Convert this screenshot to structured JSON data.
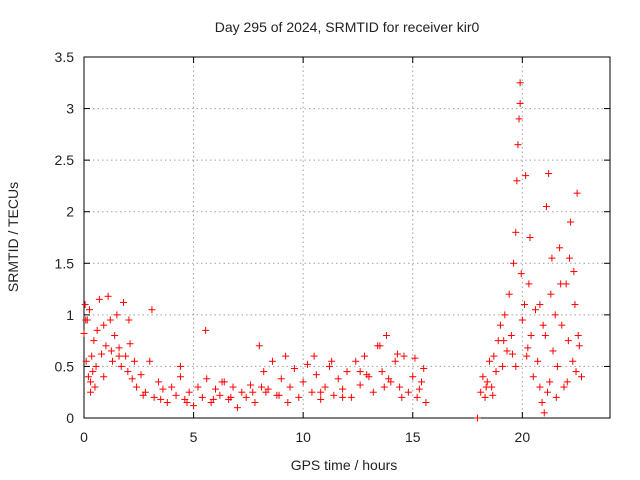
{
  "chart_data": {
    "type": "scatter",
    "title": "Day 295 of 2024, SRMTID for receiver kir0",
    "xlabel": "GPS time / hours",
    "ylabel": "SRMTID / TECUs",
    "xlim": [
      0,
      24
    ],
    "ylim": [
      0,
      3.5
    ],
    "xticks": [
      0,
      5,
      10,
      15,
      20
    ],
    "xtick_labels": [
      "0",
      "5",
      "10",
      "15",
      "20"
    ],
    "yticks": [
      0,
      0.5,
      1,
      1.5,
      2,
      2.5,
      3,
      3.5
    ],
    "ytick_labels": [
      "0",
      "0.5",
      "1",
      "1.5",
      "2",
      "2.5",
      "3",
      "3.5"
    ],
    "grid": true,
    "marker": "+",
    "marker_color": "#ff0000",
    "series": [
      {
        "name": "SRMTID",
        "x": [
          0.0,
          0.05,
          0.1,
          0.15,
          0.2,
          0.25,
          0.3,
          0.35,
          0.4,
          0.45,
          0.5,
          0.6,
          0.7,
          0.8,
          0.9,
          1.0,
          1.1,
          1.2,
          1.3,
          1.4,
          1.5,
          1.6,
          1.7,
          1.8,
          1.9,
          2.0,
          2.1,
          2.2,
          2.3,
          2.4,
          2.6,
          2.8,
          3.0,
          3.2,
          3.4,
          3.6,
          3.8,
          4.0,
          4.2,
          4.4,
          4.6,
          4.8,
          5.0,
          5.2,
          5.4,
          5.6,
          5.8,
          6.0,
          6.2,
          6.4,
          6.6,
          6.8,
          7.0,
          7.2,
          7.4,
          7.6,
          7.8,
          8.0,
          8.2,
          8.4,
          8.6,
          8.8,
          9.0,
          9.2,
          9.4,
          9.6,
          9.8,
          10.0,
          10.2,
          10.4,
          10.6,
          10.8,
          11.0,
          11.2,
          11.4,
          11.6,
          11.8,
          12.0,
          12.2,
          12.4,
          12.6,
          12.8,
          13.0,
          13.2,
          13.4,
          13.6,
          13.8,
          14.0,
          14.2,
          14.4,
          14.6,
          14.8,
          15.0,
          15.2,
          15.4,
          15.6,
          17.95,
          18.1,
          18.2,
          18.3,
          18.4,
          18.5,
          18.6,
          18.7,
          18.8,
          18.9,
          19.0,
          19.1,
          19.2,
          19.3,
          19.4,
          19.5,
          19.6,
          19.7,
          19.75,
          19.8,
          19.85,
          19.9,
          19.95,
          20.0,
          20.1,
          20.2,
          20.3,
          20.4,
          20.5,
          20.6,
          20.7,
          20.8,
          20.9,
          21.0,
          21.05,
          21.1,
          21.15,
          21.2,
          21.3,
          21.4,
          21.5,
          21.6,
          21.7,
          21.8,
          21.9,
          22.0,
          22.1,
          22.2,
          22.3,
          22.4,
          22.5,
          22.6,
          22.7,
          0.08,
          0.55,
          1.25,
          2.05,
          3.1,
          4.4,
          5.55,
          6.3,
          7.7,
          8.1,
          9.3,
          10.5,
          11.3,
          12.6,
          13.5,
          13.9,
          14.3,
          15.1,
          15.5,
          19.7,
          19.9,
          20.15,
          20.35,
          20.8,
          21.25,
          21.35,
          21.75,
          22.15,
          22.35,
          22.55,
          0.3,
          0.9,
          1.6,
          2.7,
          3.5,
          4.7,
          5.9,
          6.7,
          8.3,
          8.9,
          10.8,
          11.8,
          12.9,
          13.7,
          14.5,
          15.3,
          18.35,
          18.65,
          19.15,
          19.55,
          20.25,
          20.95,
          21.55,
          22.05,
          22.45
        ],
        "y": [
          0.82,
          1.1,
          0.55,
          0.95,
          0.4,
          1.05,
          0.35,
          0.6,
          0.45,
          0.75,
          0.3,
          0.85,
          1.15,
          0.62,
          0.9,
          0.7,
          1.18,
          0.95,
          0.55,
          0.8,
          1.0,
          0.68,
          0.5,
          1.12,
          0.6,
          0.45,
          0.72,
          0.38,
          0.55,
          0.3,
          0.42,
          0.25,
          0.55,
          0.2,
          0.35,
          0.28,
          0.15,
          0.3,
          0.22,
          0.4,
          0.18,
          0.25,
          0.12,
          0.3,
          0.2,
          0.38,
          0.15,
          0.28,
          0.22,
          0.35,
          0.18,
          0.3,
          0.1,
          0.25,
          0.2,
          0.32,
          0.15,
          0.7,
          0.45,
          0.28,
          0.55,
          0.22,
          0.38,
          0.6,
          0.3,
          0.48,
          0.2,
          0.35,
          0.52,
          0.25,
          0.42,
          0.18,
          0.3,
          0.5,
          0.22,
          0.38,
          0.28,
          0.45,
          0.2,
          0.55,
          0.32,
          0.6,
          0.4,
          0.25,
          0.7,
          0.45,
          0.8,
          0.35,
          0.55,
          0.3,
          0.6,
          0.25,
          0.4,
          0.2,
          0.35,
          0.15,
          0.0,
          0.25,
          0.4,
          0.2,
          0.35,
          0.55,
          0.3,
          0.6,
          0.45,
          0.75,
          0.9,
          0.5,
          1.0,
          0.65,
          1.2,
          0.8,
          1.5,
          1.8,
          2.3,
          2.65,
          2.9,
          3.25,
          1.4,
          0.95,
          1.1,
          0.6,
          1.3,
          0.8,
          0.4,
          1.05,
          0.55,
          0.3,
          0.15,
          0.05,
          0.8,
          2.05,
          0.25,
          2.37,
          1.2,
          0.65,
          1.0,
          0.5,
          1.65,
          0.9,
          0.3,
          1.3,
          0.75,
          1.9,
          0.55,
          1.1,
          2.18,
          0.7,
          0.4,
          0.95,
          0.5,
          0.65,
          0.95,
          1.05,
          0.5,
          0.85,
          0.35,
          0.25,
          0.3,
          0.15,
          0.6,
          0.55,
          0.45,
          0.7,
          0.38,
          0.62,
          0.58,
          0.48,
          0.5,
          3.05,
          2.35,
          1.75,
          1.1,
          0.35,
          1.55,
          1.3,
          1.55,
          1.42,
          0.8,
          0.25,
          0.4,
          0.6,
          0.22,
          0.18,
          0.15,
          0.18,
          0.2,
          0.25,
          0.22,
          0.25,
          0.2,
          0.42,
          0.3,
          0.2,
          0.28,
          0.3,
          0.22,
          0.75,
          0.62,
          0.68,
          0.9,
          0.2,
          0.35,
          0.45
        ]
      }
    ]
  }
}
